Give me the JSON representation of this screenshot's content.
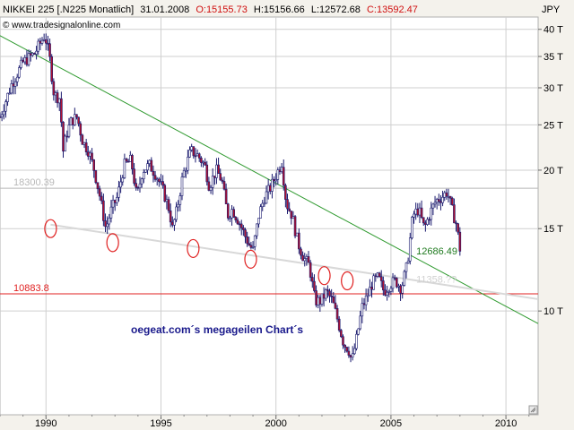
{
  "chart_data": {
    "type": "candlestick",
    "header": {
      "symbol": "NIKKEI 225 [.N225  Monatlich]",
      "date": "31.01.2008",
      "open_label": "O:15155.73",
      "high_label": "H:15156.66",
      "low_label": "L:12572.68",
      "close_label": "C:13592.47"
    },
    "website": "© www.tradesignalonline.com",
    "currency": "JPY",
    "annotation": "oegeat.com´s megageilen Chart´s",
    "x_ticks": [
      "1990",
      "1995",
      "2000",
      "2005",
      "2010"
    ],
    "x_range": [
      1988.0,
      2011.4
    ],
    "y_ticks": [
      {
        "value": 40000,
        "label": "40 T"
      },
      {
        "value": 35000,
        "label": "35 T"
      },
      {
        "value": 30000,
        "label": "30 T"
      },
      {
        "value": 25000,
        "label": "25 T"
      },
      {
        "value": 20000,
        "label": "20 T"
      },
      {
        "value": 15000,
        "label": "15 T"
      },
      {
        "value": 10000,
        "label": "10 T"
      }
    ],
    "y_scale": "log",
    "y_range": [
      6000,
      42500
    ],
    "levels": [
      {
        "value": 18300.39,
        "label": "18300.39",
        "color": "#b8b8b8"
      },
      {
        "value": 10883.8,
        "label": "10883.8",
        "color": "#e02020"
      }
    ],
    "trendlines": [
      {
        "from": [
          1987.95,
          38900
        ],
        "to": [
          2011.4,
          9400
        ],
        "color": "#2f9a2f"
      },
      {
        "from": [
          1990.2,
          15300
        ],
        "to": [
          2011.4,
          10600
        ],
        "color": "#d8d8d8"
      }
    ],
    "trend_labels": [
      {
        "text": "12686.49",
        "color": "#1f7a1f",
        "anchor": [
          2006.1,
          13200
        ]
      },
      {
        "text": "11358.??",
        "color": "#d0d0d0",
        "anchor": [
          2006.1,
          11500
        ]
      }
    ],
    "circles": [
      {
        "x": 1990.2,
        "y": 15000
      },
      {
        "x": 1992.9,
        "y": 14000
      },
      {
        "x": 1996.4,
        "y": 13600
      },
      {
        "x": 1998.9,
        "y": 12900
      },
      {
        "x": 2002.1,
        "y": 11900
      },
      {
        "x": 2003.1,
        "y": 11600
      }
    ],
    "last_close": 13592.47,
    "series_path": [
      [
        1988.0,
        26000
      ],
      [
        1988.5,
        30500
      ],
      [
        1989.0,
        34000
      ],
      [
        1989.5,
        35500
      ],
      [
        1989.95,
        38900
      ],
      [
        1990.15,
        35000
      ],
      [
        1990.35,
        29000
      ],
      [
        1990.6,
        28500
      ],
      [
        1990.75,
        22000
      ],
      [
        1990.9,
        24000
      ],
      [
        1991.1,
        25500
      ],
      [
        1991.35,
        26000
      ],
      [
        1991.6,
        23000
      ],
      [
        1991.85,
        22000
      ],
      [
        1992.1,
        20000
      ],
      [
        1992.35,
        17500
      ],
      [
        1992.6,
        15000
      ],
      [
        1992.85,
        16500
      ],
      [
        1993.1,
        17500
      ],
      [
        1993.4,
        20500
      ],
      [
        1993.7,
        21000
      ],
      [
        1993.95,
        17500
      ],
      [
        1994.2,
        20000
      ],
      [
        1994.5,
        20500
      ],
      [
        1994.8,
        19500
      ],
      [
        1995.1,
        18000
      ],
      [
        1995.35,
        16500
      ],
      [
        1995.5,
        15000
      ],
      [
        1995.7,
        16500
      ],
      [
        1995.95,
        19500
      ],
      [
        1996.3,
        22000
      ],
      [
        1996.6,
        21500
      ],
      [
        1996.9,
        20500
      ],
      [
        1997.1,
        18500
      ],
      [
        1997.4,
        20000
      ],
      [
        1997.65,
        19000
      ],
      [
        1997.9,
        16000
      ],
      [
        1998.1,
        16500
      ],
      [
        1998.4,
        15500
      ],
      [
        1998.65,
        14500
      ],
      [
        1998.85,
        13800
      ],
      [
        1999.0,
        13500
      ],
      [
        1999.25,
        16000
      ],
      [
        1999.5,
        17500
      ],
      [
        1999.8,
        18500
      ],
      [
        2000.1,
        20000
      ],
      [
        2000.25,
        20800
      ],
      [
        2000.45,
        17000
      ],
      [
        2000.7,
        16000
      ],
      [
        2000.95,
        14000
      ],
      [
        2001.2,
        13000
      ],
      [
        2001.45,
        12500
      ],
      [
        2001.7,
        10500
      ],
      [
        2001.95,
        10500
      ],
      [
        2002.2,
        11000
      ],
      [
        2002.45,
        10500
      ],
      [
        2002.7,
        9500
      ],
      [
        2002.95,
        8500
      ],
      [
        2003.15,
        8300
      ],
      [
        2003.3,
        7800
      ],
      [
        2003.5,
        8700
      ],
      [
        2003.75,
        10200
      ],
      [
        2003.95,
        10700
      ],
      [
        2004.2,
        11500
      ],
      [
        2004.45,
        11800
      ],
      [
        2004.7,
        11000
      ],
      [
        2004.95,
        11400
      ],
      [
        2005.2,
        11600
      ],
      [
        2005.45,
        11200
      ],
      [
        2005.7,
        12500
      ],
      [
        2005.95,
        16000
      ],
      [
        2006.2,
        16500
      ],
      [
        2006.45,
        15000
      ],
      [
        2006.7,
        16200
      ],
      [
        2006.95,
        17200
      ],
      [
        2007.2,
        17500
      ],
      [
        2007.45,
        18000
      ],
      [
        2007.65,
        16500
      ],
      [
        2007.85,
        15300
      ],
      [
        2008.0,
        13592
      ]
    ]
  }
}
